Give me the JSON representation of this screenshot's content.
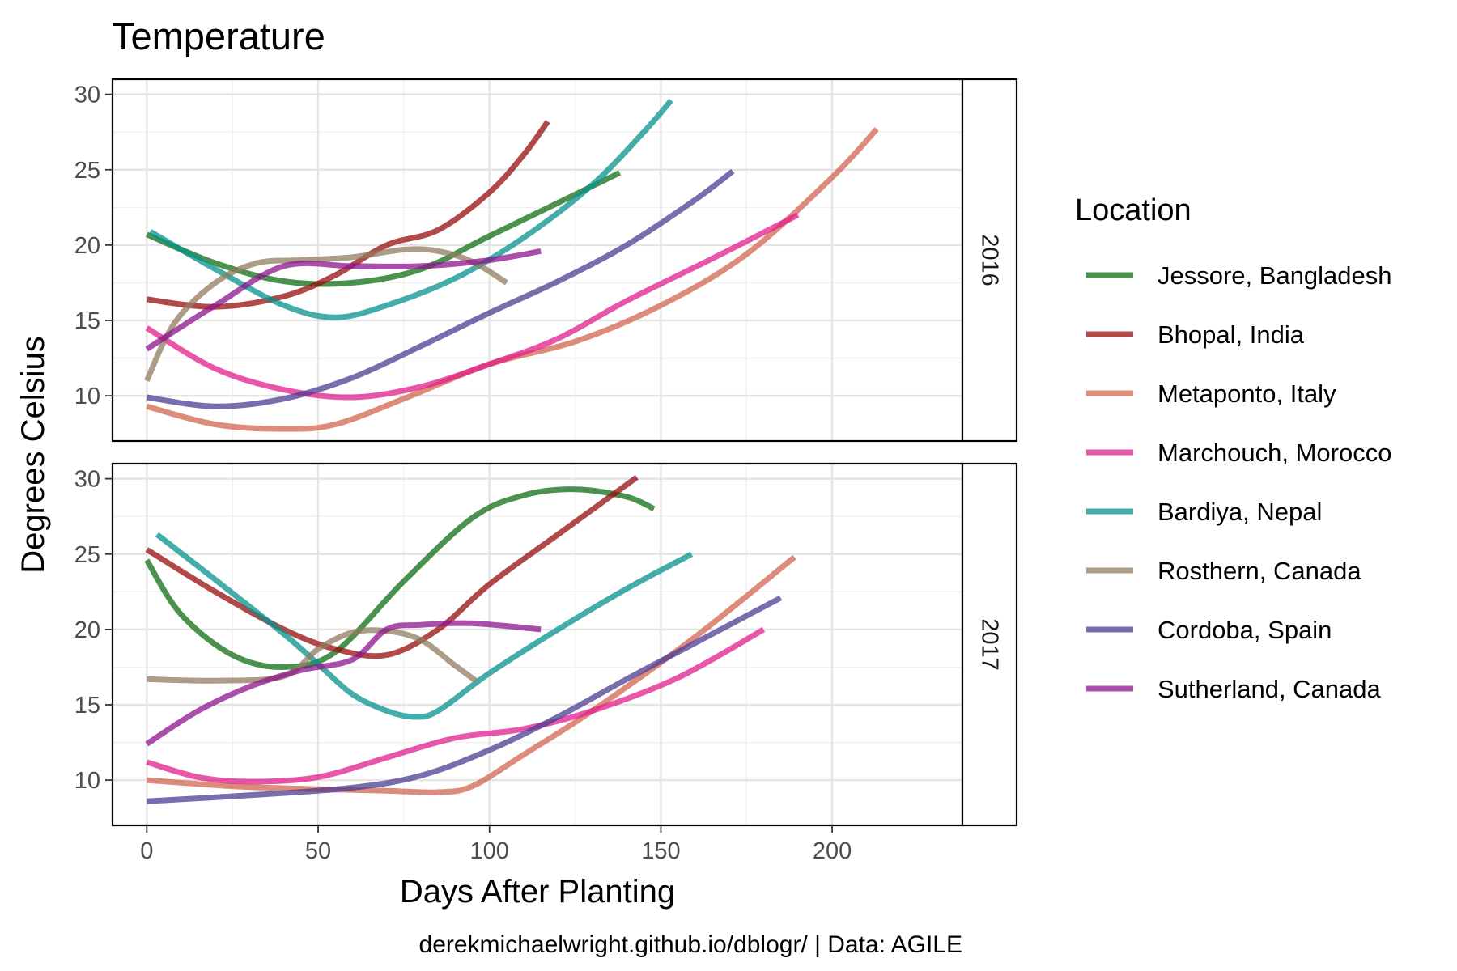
{
  "chart_data": {
    "type": "line",
    "title": "Temperature",
    "xlabel": "Days After Planting",
    "ylabel": "Degrees Celsius",
    "caption": "derekmichaelwright.github.io/dblogr/ | Data: AGILE",
    "xlim": [
      -10,
      238
    ],
    "ylim": [
      7,
      31
    ],
    "x_ticks": [
      0,
      50,
      100,
      150,
      200
    ],
    "x_tick_labels": [
      "0",
      "50",
      "100",
      "150",
      "200"
    ],
    "y_ticks": [
      10,
      15,
      20,
      25,
      30
    ],
    "y_tick_labels": [
      "10",
      "15",
      "20",
      "25",
      "30"
    ],
    "grid": true,
    "legend": {
      "title": "Location",
      "position": "right",
      "entries": [
        {
          "name": "Jessore, Bangladesh",
          "color": "#0f6e14"
        },
        {
          "name": "Bhopal, India",
          "color": "#960e0e"
        },
        {
          "name": "Metaponto, Italy",
          "color": "#d2644f"
        },
        {
          "name": "Marchouch, Morocco",
          "color": "#e01e8c"
        },
        {
          "name": "Bardiya, Nepal",
          "color": "#05918c"
        },
        {
          "name": "Rosthern, Canada",
          "color": "#917b5f"
        },
        {
          "name": "Cordoba, Spain",
          "color": "#4b3c91"
        },
        {
          "name": "Sutherland, Canada",
          "color": "#8c148c"
        }
      ]
    },
    "facets": [
      {
        "label": "2016",
        "series": [
          {
            "name": "Jessore, Bangladesh",
            "x": [
              0,
              20,
              40,
              60,
              80,
              100,
              120,
              138
            ],
            "y": [
              20.7,
              18.8,
              17.6,
              17.5,
              18.4,
              20.6,
              22.8,
              24.8
            ]
          },
          {
            "name": "Bhopal, India",
            "x": [
              0,
              20,
              40,
              55,
              70,
              85,
              100,
              110,
              117
            ],
            "y": [
              16.4,
              15.9,
              16.6,
              18.0,
              20.0,
              21.0,
              23.5,
              26.0,
              28.2
            ]
          },
          {
            "name": "Metaponto, Italy",
            "x": [
              0,
              20,
              40,
              55,
              75,
              100,
              125,
              150,
              175,
              200,
              213
            ],
            "y": [
              9.3,
              8.1,
              7.8,
              8.1,
              9.8,
              12.1,
              13.6,
              16.0,
              19.4,
              24.5,
              27.7
            ]
          },
          {
            "name": "Marchouch, Morocco",
            "x": [
              0,
              20,
              40,
              60,
              80,
              100,
              120,
              140,
              165,
              190
            ],
            "y": [
              14.5,
              11.8,
              10.4,
              9.9,
              10.6,
              12.1,
              13.8,
              16.3,
              19.1,
              22.0
            ]
          },
          {
            "name": "Bardiya, Nepal",
            "x": [
              1,
              20,
              40,
              55,
              70,
              90,
              110,
              130,
              145,
              153
            ],
            "y": [
              20.9,
              18.4,
              16.0,
              15.2,
              16.0,
              17.8,
              20.5,
              24.0,
              27.5,
              29.6
            ]
          },
          {
            "name": "Rosthern, Canada",
            "x": [
              0,
              8,
              20,
              32,
              45,
              60,
              75,
              85,
              95,
              105
            ],
            "y": [
              11.0,
              14.8,
              17.5,
              18.8,
              19.0,
              19.2,
              19.7,
              19.6,
              18.9,
              17.5
            ]
          },
          {
            "name": "Cordoba, Spain",
            "x": [
              0,
              20,
              40,
              60,
              80,
              100,
              120,
              140,
              160,
              171
            ],
            "y": [
              9.9,
              9.3,
              9.8,
              11.2,
              13.3,
              15.5,
              17.6,
              20.0,
              23.0,
              24.9
            ]
          },
          {
            "name": "Sutherland, Canada",
            "x": [
              0,
              20,
              40,
              60,
              80,
              100,
              115
            ],
            "y": [
              13.1,
              16.0,
              18.6,
              18.6,
              18.6,
              19.0,
              19.6
            ]
          }
        ]
      },
      {
        "label": "2017",
        "series": [
          {
            "name": "Jessore, Bangladesh",
            "x": [
              0,
              10,
              25,
              40,
              55,
              75,
              95,
              110,
              125,
              140,
              148
            ],
            "y": [
              24.6,
              21.0,
              18.3,
              17.5,
              18.5,
              23.2,
              27.4,
              28.9,
              29.3,
              28.8,
              28.0
            ]
          },
          {
            "name": "Bhopal, India",
            "x": [
              0,
              20,
              40,
              55,
              70,
              85,
              100,
              120,
              143
            ],
            "y": [
              25.3,
              22.5,
              20.0,
              18.7,
              18.3,
              20.0,
              23.0,
              26.3,
              30.1
            ]
          },
          {
            "name": "Metaponto, Italy",
            "x": [
              0,
              25,
              50,
              70,
              85,
              95,
              110,
              130,
              160,
              189
            ],
            "y": [
              10.0,
              9.6,
              9.4,
              9.3,
              9.2,
              9.6,
              11.7,
              14.6,
              19.5,
              24.8
            ]
          },
          {
            "name": "Marchouch, Morocco",
            "x": [
              0,
              15,
              30,
              50,
              70,
              90,
              110,
              130,
              155,
              180
            ],
            "y": [
              11.2,
              10.2,
              9.9,
              10.2,
              11.5,
              12.8,
              13.4,
              14.6,
              16.8,
              20.0
            ]
          },
          {
            "name": "Bardiya, Nepal",
            "x": [
              3,
              20,
              40,
              50,
              60,
              70,
              78,
              85,
              100,
              120,
              140,
              159
            ],
            "y": [
              26.3,
              23.3,
              19.7,
              17.7,
              15.7,
              14.6,
              14.2,
              14.6,
              17.1,
              20.0,
              22.7,
              25.0
            ]
          },
          {
            "name": "Rosthern, Canada",
            "x": [
              0,
              20,
              40,
              50,
              60,
              70,
              80,
              90,
              96
            ],
            "y": [
              16.7,
              16.6,
              16.9,
              18.7,
              19.8,
              19.9,
              19.3,
              17.6,
              16.6
            ]
          },
          {
            "name": "Cordoba, Spain",
            "x": [
              0,
              30,
              60,
              80,
              100,
              120,
              140,
              160,
              185
            ],
            "y": [
              8.6,
              9.0,
              9.5,
              10.3,
              12.0,
              14.2,
              16.7,
              19.1,
              22.1
            ]
          },
          {
            "name": "Sutherland, Canada",
            "x": [
              0,
              15,
              30,
              45,
              60,
              70,
              80,
              95,
              115
            ],
            "y": [
              12.4,
              14.6,
              16.2,
              17.3,
              18.0,
              20.0,
              20.3,
              20.4,
              20.0
            ]
          }
        ]
      }
    ]
  }
}
